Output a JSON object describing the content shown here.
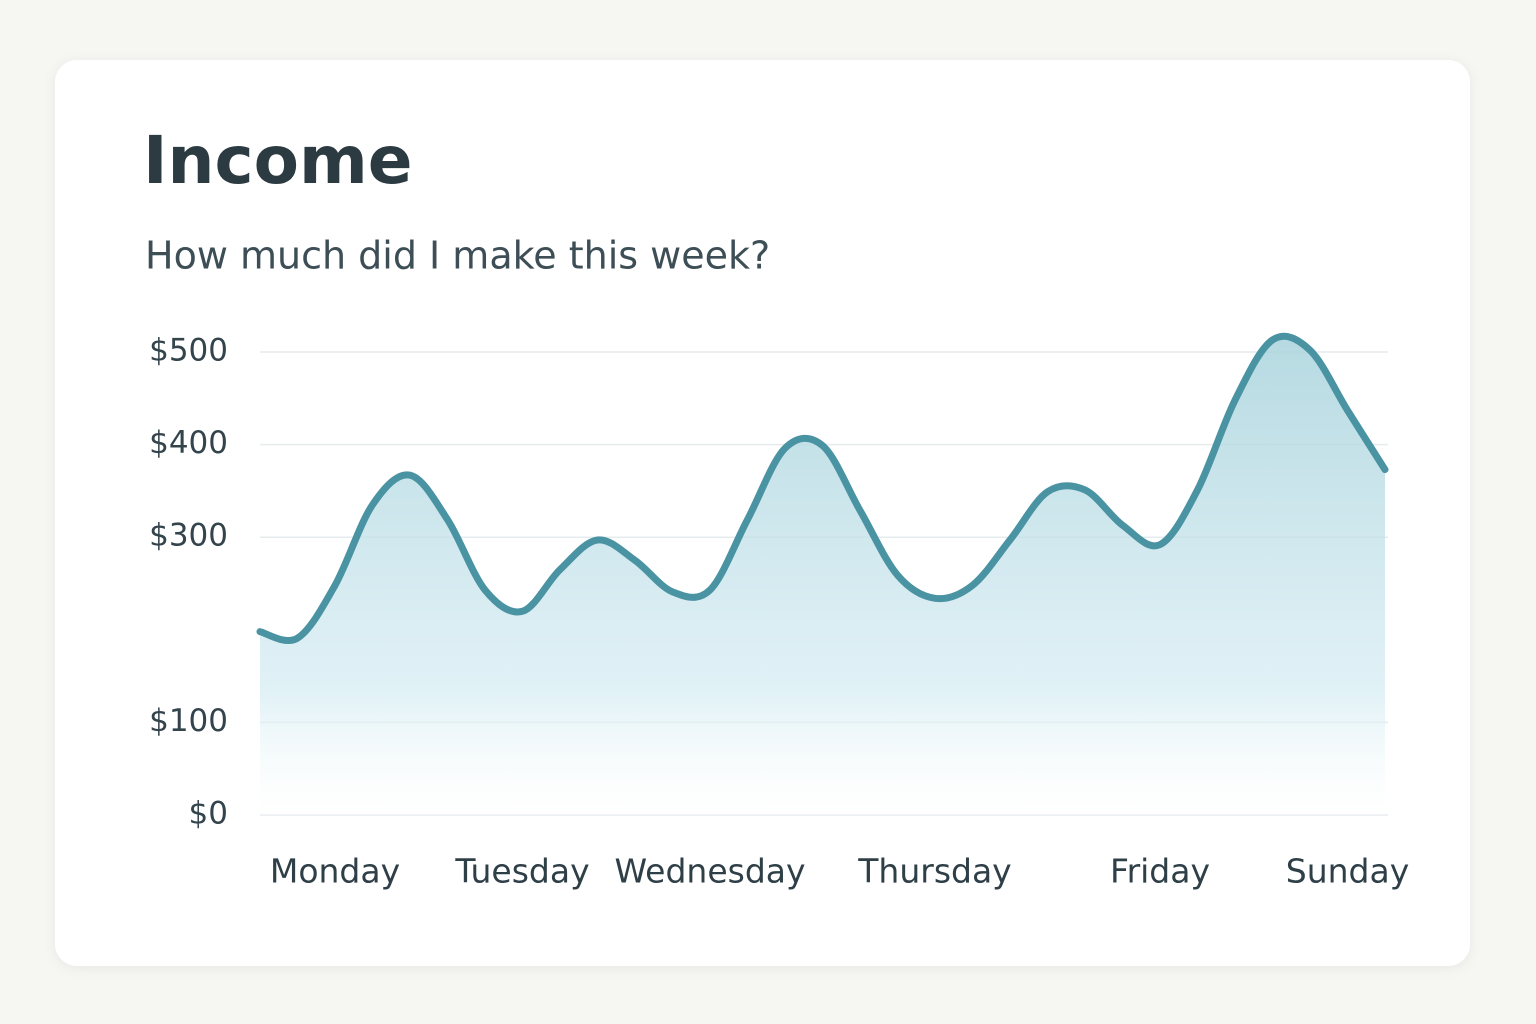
{
  "chart_data": {
    "type": "area",
    "title": "Income",
    "subtitle": "How much did I make this week?",
    "categories": [
      null,
      null,
      "Monday",
      null,
      null,
      null,
      null,
      "Tuesday",
      null,
      null,
      null,
      null,
      "Wednesday",
      null,
      null,
      null,
      null,
      null,
      "Thursday",
      null,
      null,
      null,
      null,
      null,
      "Friday",
      null,
      null,
      null,
      null,
      "Sunday",
      null
    ],
    "values": [
      198,
      191,
      248,
      335,
      367,
      319,
      243,
      220,
      265,
      297,
      275,
      241,
      243,
      319,
      396,
      399,
      329,
      259,
      234,
      248,
      297,
      349,
      351,
      313,
      292,
      351,
      448,
      513,
      502,
      437,
      373
    ],
    "color": "#4a93a3",
    "ylim": [
      0,
      500
    ],
    "yticks": [
      {
        "value": 0,
        "label": "$0"
      },
      {
        "value": 100,
        "label": "$100"
      },
      {
        "value": 300,
        "label": "$300"
      },
      {
        "value": 400,
        "label": "$400"
      },
      {
        "value": 500,
        "label": "$500"
      }
    ],
    "grid": true
  }
}
